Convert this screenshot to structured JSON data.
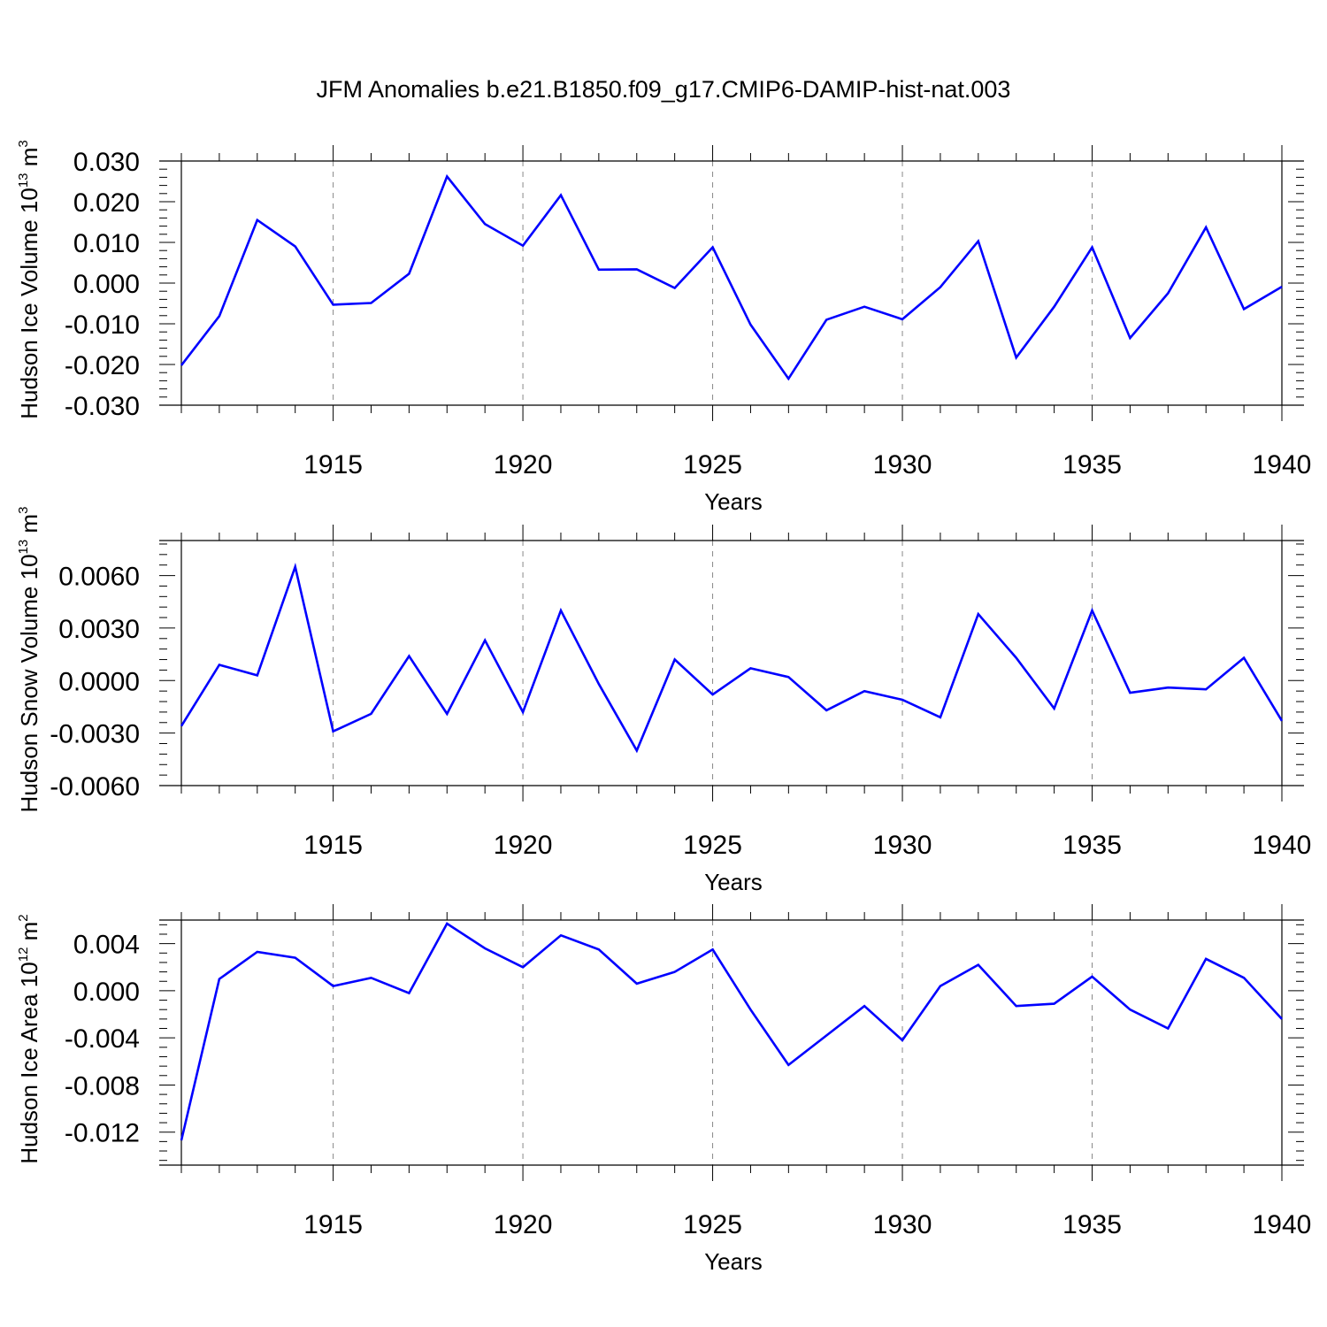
{
  "figure": {
    "title": "JFM Anomalies b.e21.B1850.f09_g17.CMIP6-DAMIP-hist-nat.003",
    "line_color": "#0000ff",
    "grid_color": "#888888"
  },
  "chart_data": [
    {
      "type": "line",
      "xlabel": "Years",
      "ylabel": {
        "main": "Hudson Ice Volume 10",
        "exp": "13",
        "unit": " m",
        "unit_exp": "3"
      },
      "xlim": [
        1911,
        1940
      ],
      "ylim": [
        -0.03,
        0.03
      ],
      "x_ticks": [
        1915,
        1920,
        1925,
        1930,
        1935,
        1940
      ],
      "y_ticks": [
        -0.03,
        -0.02,
        -0.01,
        0.0,
        0.01,
        0.02,
        0.03
      ],
      "y_tick_labels": [
        "-0.030",
        "-0.020",
        "-0.010",
        "0.000",
        "0.010",
        "0.020",
        "0.030"
      ],
      "grid": "vertical dashed at major x ticks",
      "x": [
        1911,
        1912,
        1913,
        1914,
        1915,
        1916,
        1917,
        1918,
        1919,
        1920,
        1921,
        1922,
        1923,
        1924,
        1925,
        1926,
        1927,
        1928,
        1929,
        1930,
        1931,
        1932,
        1933,
        1934,
        1935,
        1936,
        1937,
        1938,
        1939,
        1940
      ],
      "values": [
        -0.0202,
        -0.0081,
        0.0155,
        0.009,
        -0.0053,
        -0.0049,
        0.0023,
        0.0262,
        0.0145,
        0.0092,
        0.0216,
        0.0033,
        0.0034,
        -0.0012,
        0.0088,
        -0.0102,
        -0.0235,
        -0.009,
        -0.0058,
        -0.0089,
        -0.001,
        0.0103,
        -0.0183,
        -0.0058,
        0.0088,
        -0.0135,
        -0.0025,
        0.0137,
        -0.0064,
        -0.0009
      ]
    },
    {
      "type": "line",
      "xlabel": "Years",
      "ylabel": {
        "main": "Hudson Snow Volume 10",
        "exp": "13",
        "unit": " m",
        "unit_exp": "3"
      },
      "xlim": [
        1911,
        1940
      ],
      "ylim": [
        -0.006,
        0.008
      ],
      "x_ticks": [
        1915,
        1920,
        1925,
        1930,
        1935,
        1940
      ],
      "y_ticks": [
        -0.006,
        -0.003,
        0.0,
        0.003,
        0.006
      ],
      "y_tick_labels": [
        "-0.0060",
        "-0.0030",
        "0.0000",
        "0.0030",
        "0.0060"
      ],
      "grid": "vertical dashed at major x ticks",
      "x": [
        1911,
        1912,
        1913,
        1914,
        1915,
        1916,
        1917,
        1918,
        1919,
        1920,
        1921,
        1922,
        1923,
        1924,
        1925,
        1926,
        1927,
        1928,
        1929,
        1930,
        1931,
        1932,
        1933,
        1934,
        1935,
        1936,
        1937,
        1938,
        1939,
        1940
      ],
      "values": [
        -0.0026,
        0.0009,
        0.0003,
        0.0065,
        -0.0029,
        -0.0019,
        0.0014,
        -0.0019,
        0.0023,
        -0.0018,
        0.004,
        -0.0002,
        -0.004,
        0.0012,
        -0.0008,
        0.0007,
        0.0002,
        -0.0017,
        -0.0006,
        -0.0011,
        -0.0021,
        0.0038,
        0.0013,
        -0.0016,
        0.004,
        -0.0007,
        -0.0004,
        -0.0005,
        0.0013,
        -0.0023
      ]
    },
    {
      "type": "line",
      "xlabel": "Years",
      "ylabel": {
        "main": "Hudson Ice Area 10",
        "exp": "12",
        "unit": " m",
        "unit_exp": "2"
      },
      "xlim": [
        1911,
        1940
      ],
      "ylim": [
        -0.0148,
        0.006
      ],
      "x_ticks": [
        1915,
        1920,
        1925,
        1930,
        1935,
        1940
      ],
      "y_ticks": [
        -0.012,
        -0.008,
        -0.004,
        0.0,
        0.004
      ],
      "y_tick_labels": [
        "-0.012",
        "-0.008",
        "-0.004",
        "0.000",
        "0.004"
      ],
      "grid": "vertical dashed at major x ticks",
      "x": [
        1911,
        1912,
        1913,
        1914,
        1915,
        1916,
        1917,
        1918,
        1919,
        1920,
        1921,
        1922,
        1923,
        1924,
        1925,
        1926,
        1927,
        1928,
        1929,
        1930,
        1931,
        1932,
        1933,
        1934,
        1935,
        1936,
        1937,
        1938,
        1939,
        1940
      ],
      "values": [
        -0.0127,
        0.001,
        0.0033,
        0.0028,
        0.0004,
        0.0011,
        -0.0002,
        0.0057,
        0.0036,
        0.002,
        0.0047,
        0.0035,
        0.0006,
        0.0016,
        0.0035,
        -0.0016,
        -0.0063,
        -0.0038,
        -0.0013,
        -0.0042,
        0.0004,
        0.0022,
        -0.0013,
        -0.0011,
        0.0012,
        -0.0016,
        -0.0032,
        0.0027,
        0.0011,
        -0.0024
      ]
    }
  ]
}
